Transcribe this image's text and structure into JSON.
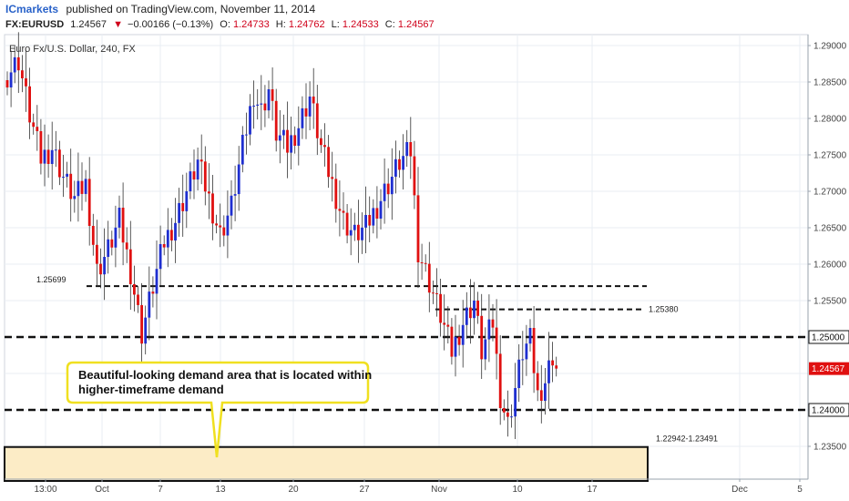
{
  "header": {
    "brand": "ICmarkets",
    "published": "published on TradingView.com, November 11, 2014",
    "symbol": "FX:EURUSD",
    "last": "1.24567",
    "change_arrow": "▼",
    "change": "−0.00166 (−0.13%)",
    "o_label": "O:",
    "o_value": "1.24733",
    "h_label": "H:",
    "h_value": "1.24762",
    "l_label": "L:",
    "l_value": "1.24533",
    "c_label": "C:",
    "c_value": "1.24567"
  },
  "chart_title": "Euro Fx/U.S. Dollar, 240, FX",
  "colors": {
    "bull": "#1f2fd0",
    "bear": "#e01010",
    "price_tag": "#e01010",
    "zone_fill": "#fcecc6",
    "callout_border": "#f0e020",
    "grid": "#e8edf3"
  },
  "chart_data": {
    "type": "candlestick",
    "symbol": "EURUSD",
    "ylim": [
      1.2325,
      1.2915
    ],
    "yticks": [
      "1.29000",
      "1.28500",
      "1.28000",
      "1.27500",
      "1.27000",
      "1.26500",
      "1.26000",
      "1.25500",
      "1.25000",
      "1.24567",
      "1.24000",
      "1.23500"
    ],
    "xticks": [
      "13:00",
      "Oct",
      "7",
      "13",
      "20",
      "27",
      "Nov",
      "10",
      "17",
      "Dec",
      "5"
    ],
    "levels": [
      {
        "value": 1.25699,
        "label": "1.25699",
        "style": "dashed"
      },
      {
        "value": 1.2538,
        "label": "1.25380",
        "style": "dashed"
      },
      {
        "value": 1.25,
        "label": "1.25000",
        "style": "dashed-bold"
      },
      {
        "value": 1.24,
        "label": "1.24000",
        "style": "dashed-bold"
      }
    ],
    "current_price": "1.24567",
    "demand_zone": {
      "low": 1.22942,
      "high": 1.23491,
      "label": "1.22942-1.23491"
    },
    "annotation": "Beautiful-looking demand area that is located within higher-timeframe demand",
    "annotation_lines": [
      "Beautiful-looking demand area that is located within",
      "higher-timeframe demand"
    ],
    "waypoints": [
      [
        0,
        1.286
      ],
      [
        3,
        1.288
      ],
      [
        6,
        1.2805
      ],
      [
        9,
        1.2745
      ],
      [
        12,
        1.276
      ],
      [
        15,
        1.272
      ],
      [
        18,
        1.269
      ],
      [
        21,
        1.271
      ],
      [
        24,
        1.259
      ],
      [
        27,
        1.262
      ],
      [
        30,
        1.266
      ],
      [
        33,
        1.259
      ],
      [
        36,
        1.2505
      ],
      [
        39,
        1.257
      ],
      [
        42,
        1.263
      ],
      [
        45,
        1.266
      ],
      [
        48,
        1.27
      ],
      [
        51,
        1.274
      ],
      [
        54,
        1.269
      ],
      [
        57,
        1.264
      ],
      [
        60,
        1.268
      ],
      [
        63,
        1.276
      ],
      [
        66,
        1.2835
      ],
      [
        68,
        1.281
      ],
      [
        70,
        1.284
      ],
      [
        72,
        1.278
      ],
      [
        75,
        1.276
      ],
      [
        78,
        1.279
      ],
      [
        81,
        1.283
      ],
      [
        84,
        1.276
      ],
      [
        87,
        1.271
      ],
      [
        90,
        1.266
      ],
      [
        93,
        1.264
      ],
      [
        96,
        1.265
      ],
      [
        99,
        1.268
      ],
      [
        102,
        1.271
      ],
      [
        105,
        1.274
      ],
      [
        108,
        1.2755
      ],
      [
        110,
        1.262
      ],
      [
        113,
        1.2575
      ],
      [
        116,
        1.253
      ],
      [
        119,
        1.248
      ],
      [
        122,
        1.252
      ],
      [
        125,
        1.255
      ],
      [
        127,
        1.248
      ],
      [
        130,
        1.252
      ],
      [
        132,
        1.242
      ],
      [
        134,
        1.238
      ],
      [
        136,
        1.243
      ],
      [
        138,
        1.248
      ],
      [
        140,
        1.2495
      ],
      [
        142,
        1.242
      ],
      [
        144,
        1.244
      ],
      [
        146,
        1.2475
      ],
      [
        147,
        1.24567
      ]
    ]
  }
}
